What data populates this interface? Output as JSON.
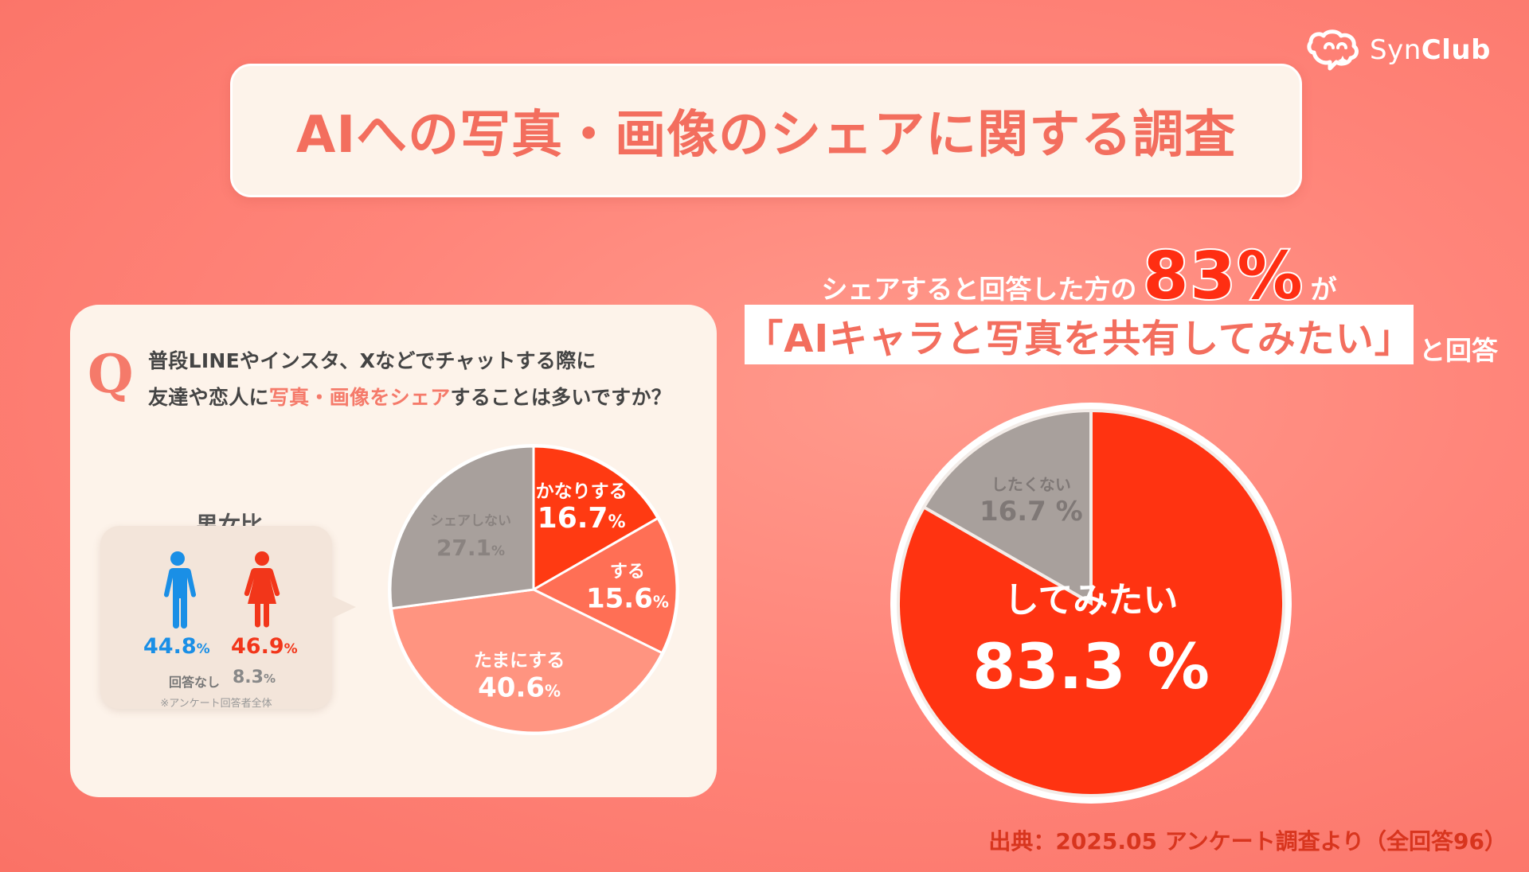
{
  "brand": {
    "name_light": "Syn",
    "name_bold": "Club",
    "icon": "chat-bubble-logo-icon"
  },
  "title": "AIへの写真・画像のシェアに関する調査",
  "question": {
    "mark": "Q",
    "line1": "普段LINEやインスタ、Xなどでチャットする際に",
    "line2_pre": "友達や恋人に",
    "line2_highlight": "写真・画像をシェア",
    "line2_post": "することは多いですか？"
  },
  "gender": {
    "title": "男女比",
    "male_value": "44.8",
    "female_value": "46.9",
    "percent_sign": "%",
    "no_answer_label": "回答なし",
    "no_answer_value": "8.3",
    "note": "※アンケート回答者全体",
    "male_icon": "male-person-icon",
    "female_icon": "female-person-icon",
    "male_color": "#1a8fe6",
    "female_color": "#f2361a"
  },
  "headline": {
    "pre": "シェアすると回答した方の",
    "big": "83%",
    "post": "が",
    "quote": "「AIキャラと写真を共有してみたい」",
    "suffix": "と回答"
  },
  "source": "出典：2025.05 アンケート調査より（全回答96）",
  "chart_data": [
    {
      "type": "pie",
      "title": "",
      "slices": [
        {
          "label": "かなりする",
          "value": 16.7,
          "display": "16.7",
          "color": "#ff3a12"
        },
        {
          "label": "する",
          "value": 15.6,
          "display": "15.6",
          "color": "#ff6f55"
        },
        {
          "label": "たまにする",
          "value": 40.6,
          "display": "40.6",
          "color": "#ff9480"
        },
        {
          "label": "シェアしない",
          "value": 27.1,
          "display": "27.1",
          "color": "#a8a09c"
        }
      ],
      "unit": "%"
    },
    {
      "type": "pie",
      "title": "",
      "slices": [
        {
          "label": "してみたい",
          "value": 83.3,
          "display": "83.3 %",
          "color": "#ff3311"
        },
        {
          "label": "したくない",
          "value": 16.7,
          "display": "16.7 %",
          "color": "#a8a09c"
        }
      ]
    }
  ]
}
